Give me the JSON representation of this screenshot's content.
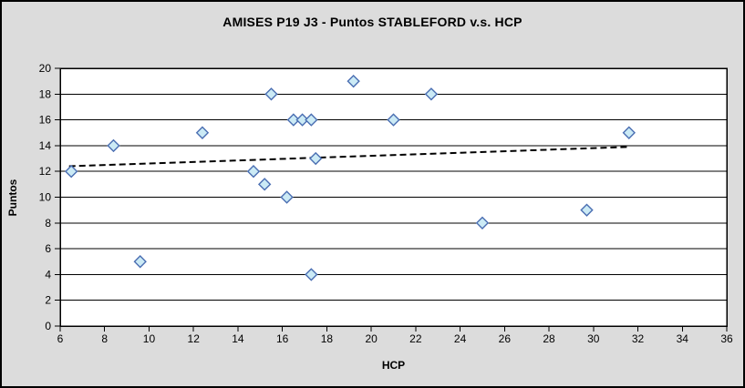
{
  "window": {
    "title": "AMISES P19 J3 - Puntos STABLEFORD v.s. HCP"
  },
  "chart_data": {
    "type": "scatter",
    "title": "AMISES P19 J3 - Puntos STABLEFORD v.s. HCP",
    "xlabel": "HCP",
    "ylabel": "Puntos",
    "xlim": [
      6,
      36
    ],
    "ylim": [
      0,
      20
    ],
    "x_ticks": [
      6,
      8,
      10,
      12,
      14,
      16,
      18,
      20,
      22,
      24,
      26,
      28,
      30,
      32,
      34,
      36
    ],
    "y_ticks": [
      0,
      2,
      4,
      6,
      8,
      10,
      12,
      14,
      16,
      18,
      20
    ],
    "grid": "horizontal-only",
    "legend_position": "none",
    "series": [
      {
        "name": "Puntos STABLEFORD",
        "marker": "diamond",
        "points": [
          [
            6.5,
            12
          ],
          [
            8.4,
            14
          ],
          [
            9.6,
            5
          ],
          [
            12.4,
            15
          ],
          [
            14.7,
            12
          ],
          [
            15.2,
            11
          ],
          [
            15.5,
            18
          ],
          [
            16.2,
            10
          ],
          [
            16.5,
            16
          ],
          [
            16.9,
            16
          ],
          [
            17.3,
            16
          ],
          [
            17.3,
            4
          ],
          [
            17.5,
            13
          ],
          [
            19.2,
            19
          ],
          [
            21.0,
            16
          ],
          [
            22.7,
            18
          ],
          [
            25.0,
            8
          ],
          [
            29.7,
            9
          ],
          [
            31.6,
            15
          ]
        ]
      }
    ],
    "trendline": {
      "style": "dashed",
      "x_start": 6.4,
      "y_start": 12.4,
      "x_end": 31.6,
      "y_end": 13.9
    },
    "colors": {
      "marker_fill": "#CBEAF5",
      "marker_stroke": "#4A6EB2",
      "trendline": "#000000",
      "plot_background": "#FFFFFF",
      "canvas_background": "#DCDCDC",
      "axis_line": "#000000",
      "grid_line": "#000000",
      "text": "#000000"
    }
  }
}
